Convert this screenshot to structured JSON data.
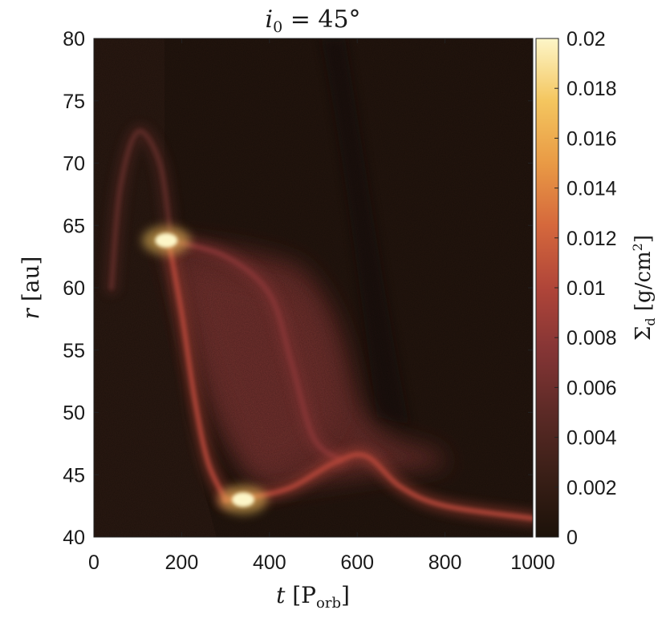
{
  "chart_data": {
    "type": "heatmap",
    "title": "i₀ = 45°",
    "xlabel": "t [P_orb]",
    "ylabel": "r [au]",
    "colorbar_label": "Σ_d [g/cm²]",
    "xlim": [
      0,
      1000
    ],
    "ylim": [
      40,
      80
    ],
    "clim": [
      0,
      0.02
    ],
    "x_ticks": [
      0,
      200,
      400,
      600,
      800,
      1000
    ],
    "y_ticks": [
      40,
      45,
      50,
      55,
      60,
      65,
      70,
      75,
      80
    ],
    "colorbar_ticks": [
      0,
      0.002,
      0.004,
      0.006,
      0.008,
      0.01,
      0.012,
      0.014,
      0.016,
      0.018,
      0.02
    ],
    "x_tick_labels": [
      "0",
      "200",
      "400",
      "600",
      "800",
      "1000"
    ],
    "y_tick_labels": [
      "40",
      "45",
      "50",
      "55",
      "60",
      "65",
      "70",
      "75",
      "80"
    ],
    "colorbar_tick_labels": [
      "0",
      "0.002",
      "0.004",
      "0.006",
      "0.008",
      "0.01",
      "0.012",
      "0.014",
      "0.016",
      "0.018",
      "0.02"
    ],
    "colormap": [
      "#1c1209",
      "#3a1f17",
      "#5c2a26",
      "#853535",
      "#b04539",
      "#d5683c",
      "#e99a45",
      "#f4c65f",
      "#fdf6c8"
    ],
    "features": [
      {
        "shape": "rim",
        "points": [
          [
            170,
            63.8
          ],
          [
            300,
            62.5
          ],
          [
            400,
            59.5
          ],
          [
            450,
            54
          ],
          [
            500,
            48
          ],
          [
            560,
            46.2
          ]
        ],
        "level": 0.0085
      },
      {
        "shape": "descending-front",
        "points": [
          [
            170,
            63.8
          ],
          [
            200,
            58
          ],
          [
            230,
            51
          ],
          [
            260,
            46
          ],
          [
            300,
            43
          ]
        ],
        "level": 0.011
      },
      {
        "shape": "inner-ridge",
        "points": [
          [
            300,
            43
          ],
          [
            360,
            43.2
          ],
          [
            450,
            44
          ],
          [
            550,
            46
          ],
          [
            620,
            46.5
          ],
          [
            700,
            44
          ],
          [
            800,
            42.5
          ],
          [
            1000,
            41.5
          ]
        ],
        "level": 0.009
      },
      {
        "shape": "outer-arc",
        "points": [
          [
            40,
            60
          ],
          [
            60,
            68
          ],
          [
            100,
            72.5
          ],
          [
            150,
            70
          ],
          [
            175,
            64
          ]
        ],
        "level": 0.005
      },
      {
        "shape": "hot-spot",
        "points": [
          [
            165,
            63.8
          ]
        ],
        "level": 0.02
      },
      {
        "shape": "hot-spot",
        "points": [
          [
            340,
            43
          ]
        ],
        "level": 0.02
      }
    ]
  }
}
